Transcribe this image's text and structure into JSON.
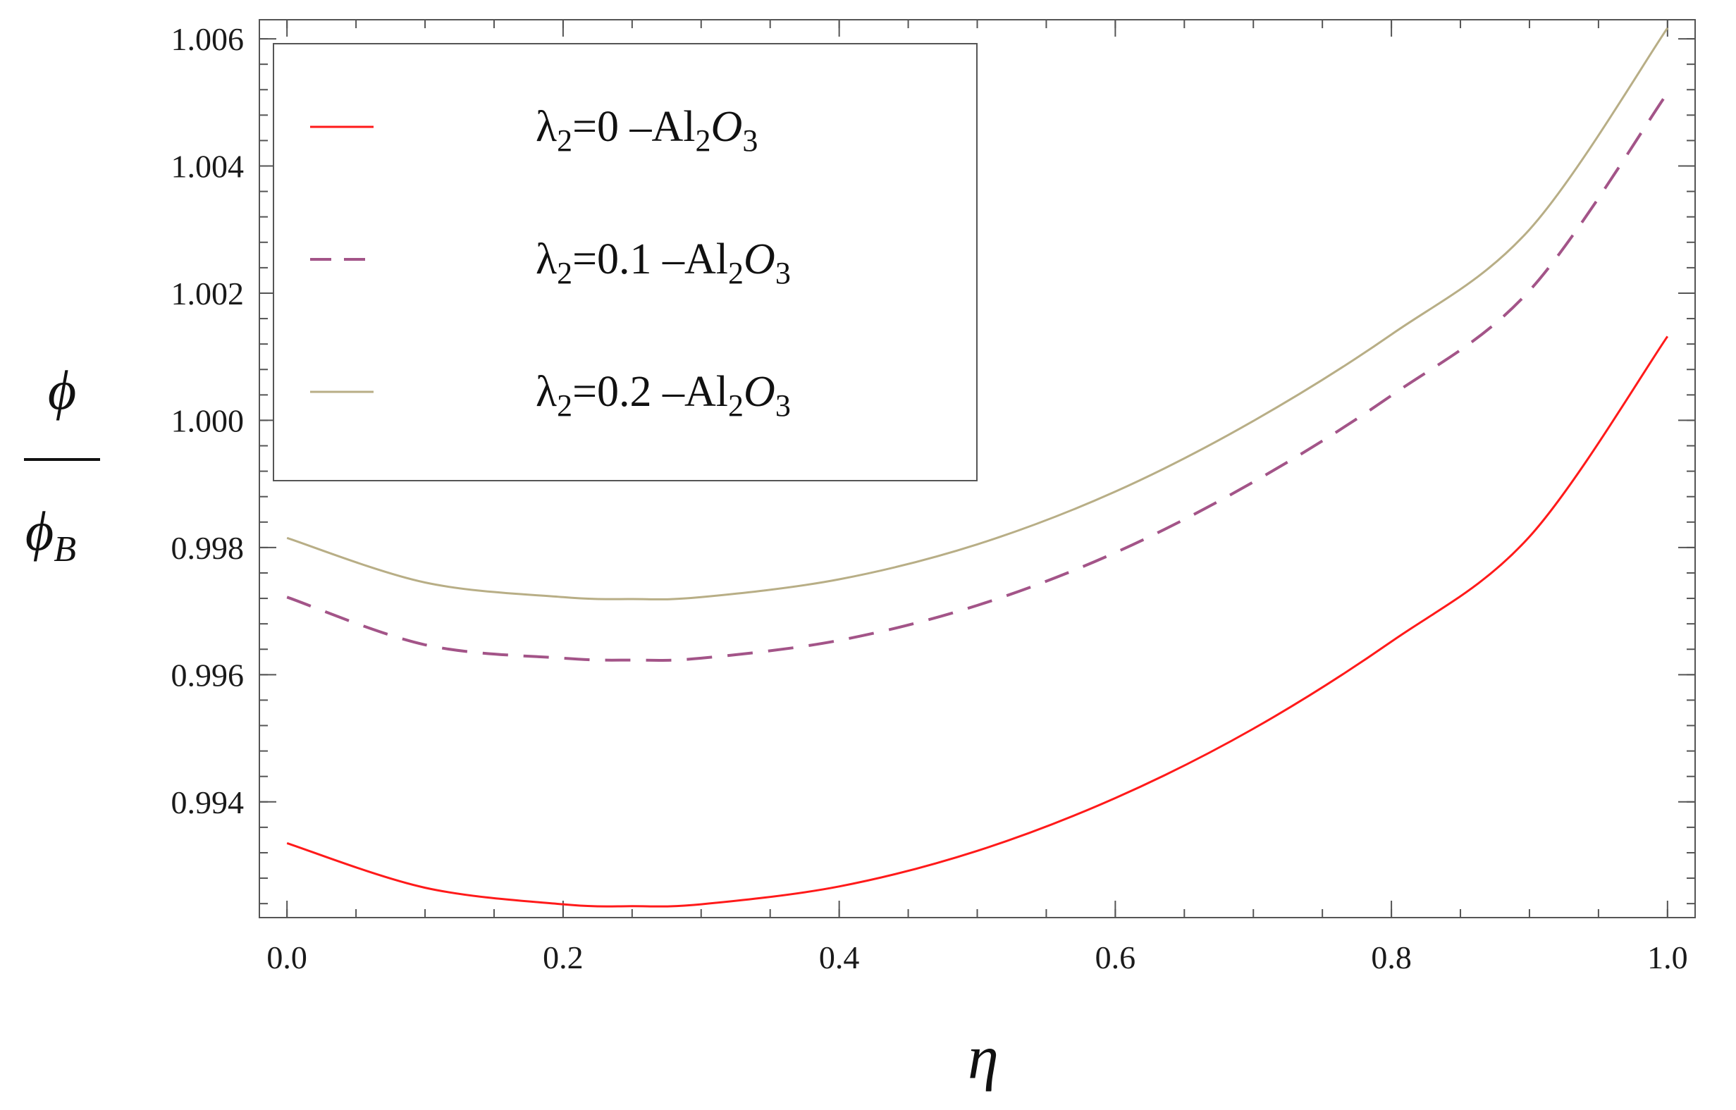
{
  "chart_data": {
    "type": "line",
    "xlabel": "η",
    "ylabel": {
      "numerator": "ϕ",
      "denominator": "ϕ",
      "denominator_subscript": "B"
    },
    "xlim": [
      -0.02,
      1.02
    ],
    "ylim": [
      0.99218,
      1.0063
    ],
    "xticks": [
      0.0,
      0.2,
      0.4,
      0.6,
      0.8,
      1.0
    ],
    "xtick_labels": [
      "0.0",
      "0.2",
      "0.4",
      "0.6",
      "0.8",
      "1.0"
    ],
    "x_minor_step": 0.05,
    "yticks": [
      0.994,
      0.996,
      0.998,
      1.0,
      1.002,
      1.004,
      1.006
    ],
    "ytick_labels": [
      "0.994",
      "0.996",
      "0.998",
      "1.000",
      "1.002",
      "1.004",
      "1.006"
    ],
    "y_minor_step": 0.0004,
    "grid": false,
    "legend_position": "top-left",
    "series": [
      {
        "label": {
          "sym": "λ",
          "sub": "2",
          "val": "=0",
          "mat": "Al",
          "msub": "2",
          "o": "O",
          "osub": "3"
        },
        "color": "#ff1a1a",
        "dash": "solid",
        "x": [
          0.0,
          0.1,
          0.2,
          0.25,
          0.3,
          0.4,
          0.5,
          0.6,
          0.7,
          0.8,
          0.9,
          1.0
        ],
        "y": [
          0.99335,
          0.99265,
          0.99239,
          0.99236,
          0.99239,
          0.99267,
          0.99323,
          0.99406,
          0.99515,
          0.99652,
          0.99817,
          1.00132
        ]
      },
      {
        "label": {
          "sym": "λ",
          "sub": "2",
          "val": "=0.1",
          "mat": "Al",
          "msub": "2",
          "o": "O",
          "osub": "3"
        },
        "color": "#a35488",
        "dash": "dashed",
        "x": [
          0.0,
          0.1,
          0.2,
          0.25,
          0.3,
          0.4,
          0.5,
          0.6,
          0.7,
          0.8,
          0.9,
          1.0
        ],
        "y": [
          0.99722,
          0.99647,
          0.99626,
          0.99623,
          0.99626,
          0.99654,
          0.99709,
          0.99792,
          0.99903,
          1.00039,
          1.00204,
          1.00515
        ]
      },
      {
        "label": {
          "sym": "λ",
          "sub": "2",
          "val": "=0.2",
          "mat": "Al",
          "msub": "2",
          "o": "O",
          "osub": "3"
        },
        "color": "#b8ae86",
        "dash": "solid",
        "x": [
          0.0,
          0.1,
          0.2,
          0.25,
          0.3,
          0.4,
          0.5,
          0.6,
          0.7,
          0.8,
          0.9,
          1.0
        ],
        "y": [
          0.99815,
          0.99745,
          0.99722,
          0.99719,
          0.99722,
          0.9975,
          0.99805,
          0.99888,
          0.99999,
          1.00135,
          1.003,
          1.00617
        ]
      }
    ]
  }
}
